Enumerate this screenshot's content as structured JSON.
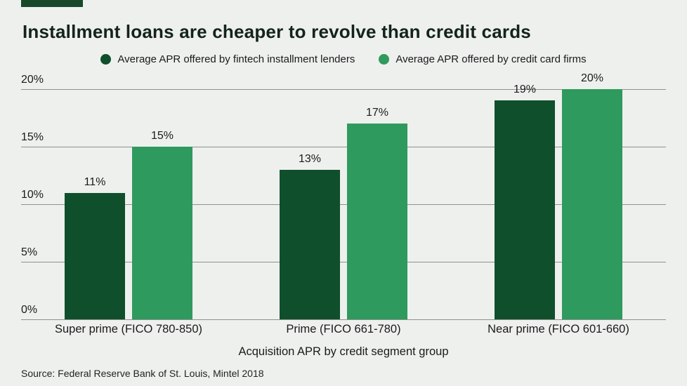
{
  "page": {
    "title": "Installment loans are cheaper to revolve than credit cards",
    "xaxis_title": "Acquisition APR by credit segment group",
    "source": "Source: Federal Reserve Bank of St. Louis, Mintel 2018"
  },
  "colors": {
    "accent_strip": "#17482a",
    "series1": "#0f4f2c",
    "series2": "#2f9a5e",
    "gridline": "#8f918f",
    "background": "#eef0ee"
  },
  "chart_data": {
    "type": "bar",
    "title": "Installment loans are cheaper to revolve than credit cards",
    "categories": [
      "Super prime (FICO 780-850)",
      "Prime (FICO 661-780)",
      "Near prime (FICO 601-660)"
    ],
    "series": [
      {
        "name": "Average APR offered by fintech installment lenders",
        "values": [
          11,
          13,
          19
        ],
        "color": "#0f4f2c"
      },
      {
        "name": "Average APR offered by credit card firms",
        "values": [
          15,
          17,
          20
        ],
        "color": "#2f9a5e"
      }
    ],
    "value_labels": [
      [
        "11%",
        "13%",
        "19%"
      ],
      [
        "15%",
        "17%",
        "20%"
      ]
    ],
    "xlabel": "Acquisition APR by credit segment group",
    "ylabel": "",
    "ylim": [
      0,
      20
    ],
    "yticks": [
      0,
      5,
      10,
      15,
      20
    ],
    "ytick_labels": [
      "0%",
      "5%",
      "10%",
      "15%",
      "20%"
    ],
    "grid": true,
    "legend_position": "top",
    "source": "Source: Federal Reserve Bank of St. Louis, Mintel 2018"
  }
}
